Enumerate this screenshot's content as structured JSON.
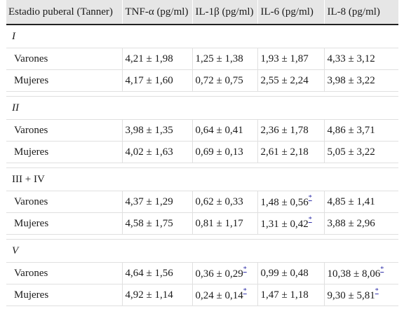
{
  "table": {
    "headers": [
      "Estadio puberal (Tanner)",
      "TNF-α (pg/ml)",
      "IL-1β (pg/ml)",
      "IL-6 (pg/ml)",
      "IL-8 (pg/ml)"
    ],
    "groups": [
      {
        "label": "I",
        "rows": [
          {
            "name": "Varones",
            "tnf": "4,21 ± 1,98",
            "il1b": "1,25 ± 1,38",
            "il6": "1,93 ± 1,87",
            "il8": "4,33 ± 3,12"
          },
          {
            "name": "Mujeres",
            "tnf": "4,17 ± 1,60",
            "il1b": "0,72 ± 0,75",
            "il6": "2,55 ± 2,24",
            "il8": "3,98 ± 3,22"
          }
        ]
      },
      {
        "label": "II",
        "rows": [
          {
            "name": "Varones",
            "tnf": "3,98 ± 1,35",
            "il1b": "0,64 ± 0,41",
            "il6": "2,36 ± 1,78",
            "il8": "4,86 ± 3,71"
          },
          {
            "name": "Mujeres",
            "tnf": "4,02 ± 1,63",
            "il1b": "0,69 ± 0,13",
            "il6": "2,61 ± 2,18",
            "il8": "5,05 ± 3,22"
          }
        ]
      },
      {
        "label": "III + IV",
        "rows": [
          {
            "name": "Varones",
            "tnf": "4,37 ± 1,29",
            "il1b": "0,62 ± 0,33",
            "il6": "1,48 ± 0,56",
            "il8": "4,85 ± 1,41"
          },
          {
            "name": "Mujeres",
            "tnf": "4,58 ± 1,75",
            "il1b": "0,81 ± 1,17",
            "il6": "1,31 ± 0,42",
            "il8": "3,88 ± 2,96"
          }
        ]
      },
      {
        "label": "V",
        "rows": [
          {
            "name": "Varones",
            "tnf": "4,64 ± 1,56",
            "il1b": "0,36 ± 0,29",
            "il6": "0,99 ± 0,48",
            "il8": "10,38 ± 8,06"
          },
          {
            "name": "Mujeres",
            "tnf": "4,92 ± 1,14",
            "il1b": "0,24 ± 0,14",
            "il6": "1,47 ± 1,18",
            "il8": "9,30 ± 5,81"
          }
        ]
      }
    ],
    "footnote_mark": "*"
  }
}
